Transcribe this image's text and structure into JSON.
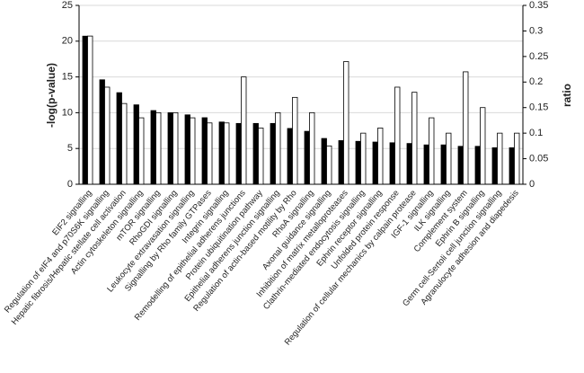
{
  "chart_data": {
    "type": "bar",
    "categories": [
      "EIF2 signalling",
      "Regulation of eIF4 and p70S6K signalling",
      "Hepatic fibrosis/Hepatic stellate cell activation",
      "Actin cytoskeleton signalling",
      "mTOR signalling",
      "RhoGDI signalling",
      "Leukocyte extravasation signalling",
      "Signalling by Rho family GTPases",
      "Integrin signalling",
      "Remodelling of epithelial adherens junctions",
      "Protein ubiquitination pathway",
      "Epithelial adherens junction signalling",
      "Regulation of actin-based motility by Rho",
      "RhoA signalling",
      "Axonal guidance signalling",
      "Inhibition of matrix metalloproteases",
      "Clathrin-mediated endocytosis signalling",
      "Ephrin receptor signalling",
      "Unfolded protein response",
      "Regulation of cellular mechanics by calpain protease",
      "IGF-1 signalling",
      "ILK signalling",
      "Complement system",
      "Ephrin B signalling",
      "Germ cell-Sertoli cell junction signalling",
      "Agranulocyte adhesion and diapedesis"
    ],
    "series": [
      {
        "color": "#000000",
        "values": [
          20.7,
          14.6,
          12.8,
          11.1,
          10.3,
          10.0,
          9.7,
          9.3,
          8.7,
          8.5,
          8.5,
          8.5,
          7.8,
          7.4,
          6.4,
          6.1,
          6.0,
          5.9,
          5.8,
          5.7,
          5.5,
          5.5,
          5.3,
          5.3,
          5.1,
          5.1
        ]
      },
      {
        "color": "#ffffff",
        "axis": "y2",
        "values": [
          0.29,
          0.19,
          0.158,
          0.13,
          0.14,
          0.14,
          0.13,
          0.12,
          0.12,
          0.21,
          0.11,
          0.14,
          0.17,
          0.14,
          0.075,
          0.24,
          0.1,
          0.11,
          0.19,
          0.18,
          0.13,
          0.1,
          0.22,
          0.15,
          0.1,
          0.1
        ]
      }
    ],
    "ylabel": "-log(p-value)",
    "y2label": "ratio",
    "ylim": [
      0,
      25
    ],
    "yticks": [
      0,
      5,
      10,
      15,
      20,
      25
    ],
    "y2lim": [
      0,
      0.35
    ],
    "y2ticks": [
      0,
      0.05,
      0.1,
      0.15,
      0.2,
      0.25,
      0.3,
      0.35
    ],
    "grid": true
  }
}
